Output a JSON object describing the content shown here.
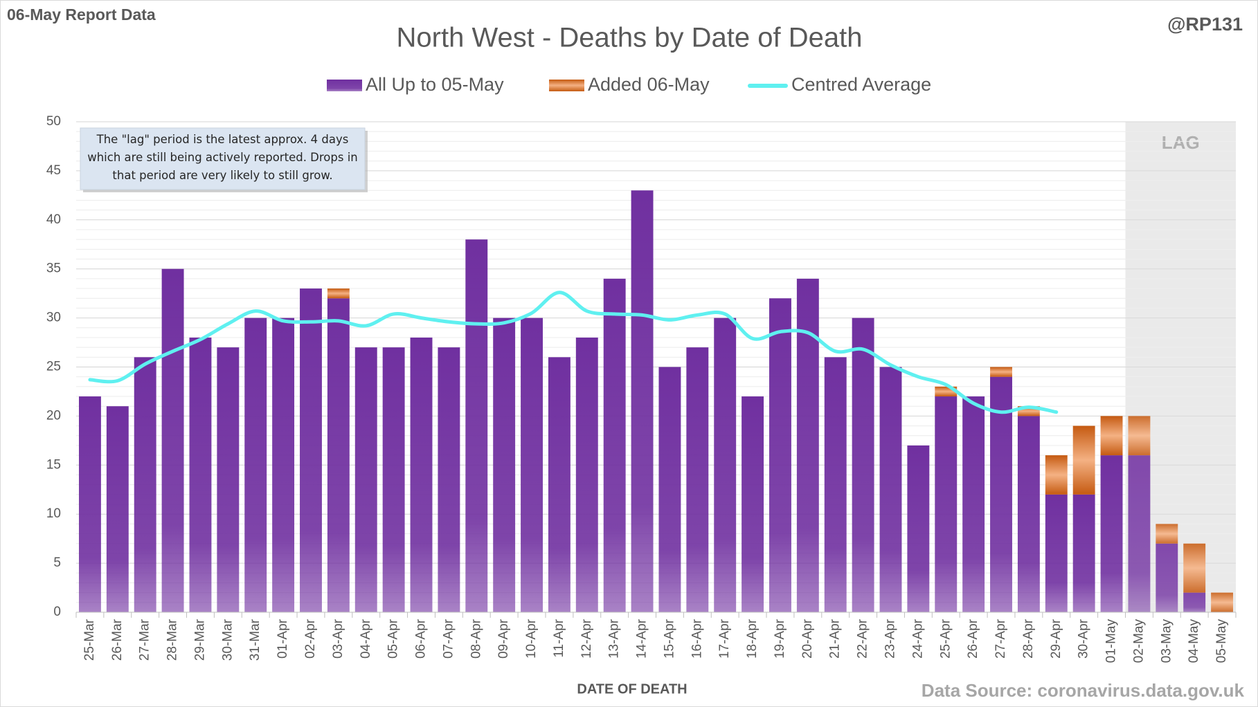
{
  "header": {
    "report": "06-May Report Data",
    "handle": "@RP131",
    "source": "Data Source: coronavirus.data.gov.uk"
  },
  "chart_data": {
    "type": "stacked_bar_line",
    "title": "North West - Deaths by Date of Death",
    "xlabel": "DATE OF DEATH",
    "annotation": "The \"lag\" period is the latest approx. 4 days which are still being actively reported.  Drops in that period are very likely to still grow.",
    "lag_label": "LAG",
    "categories": [
      "25-Mar",
      "26-Mar",
      "27-Mar",
      "28-Mar",
      "29-Mar",
      "30-Mar",
      "31-Mar",
      "01-Apr",
      "02-Apr",
      "03-Apr",
      "04-Apr",
      "05-Apr",
      "06-Apr",
      "07-Apr",
      "08-Apr",
      "09-Apr",
      "10-Apr",
      "11-Apr",
      "12-Apr",
      "13-Apr",
      "14-Apr",
      "15-Apr",
      "16-Apr",
      "17-Apr",
      "18-Apr",
      "19-Apr",
      "20-Apr",
      "21-Apr",
      "22-Apr",
      "23-Apr",
      "24-Apr",
      "25-Apr",
      "26-Apr",
      "27-Apr",
      "28-Apr",
      "29-Apr",
      "30-Apr",
      "01-May",
      "02-May",
      "03-May",
      "04-May",
      "05-May"
    ],
    "series": [
      {
        "name": "All Up to 05-May",
        "color": "#7030a0",
        "kind": "bar",
        "values": [
          22,
          21,
          26,
          35,
          28,
          27,
          30,
          30,
          33,
          32,
          27,
          27,
          28,
          27,
          38,
          30,
          30,
          26,
          28,
          34,
          43,
          25,
          27,
          30,
          22,
          32,
          34,
          26,
          30,
          25,
          17,
          22,
          22,
          24,
          20,
          12,
          12,
          16,
          16,
          7,
          2,
          0
        ]
      },
      {
        "name": "Added 06-May",
        "color": "#c55a11",
        "kind": "bar",
        "values": [
          0,
          0,
          0,
          0,
          0,
          0,
          0,
          0,
          0,
          1,
          0,
          0,
          0,
          0,
          0,
          0,
          0,
          0,
          0,
          0,
          0,
          0,
          0,
          0,
          0,
          0,
          0,
          0,
          0,
          0,
          0,
          1,
          0,
          1,
          1,
          4,
          7,
          4,
          4,
          2,
          5,
          2
        ]
      },
      {
        "name": "Centred Average",
        "color": "#5ff0f0",
        "kind": "line",
        "values": [
          23.7,
          23.6,
          25.3,
          26.6,
          27.8,
          29.4,
          30.7,
          29.7,
          29.6,
          29.7,
          29.2,
          30.4,
          30.0,
          29.6,
          29.4,
          29.5,
          30.5,
          32.6,
          30.7,
          30.4,
          30.3,
          29.8,
          30.3,
          30.4,
          27.9,
          28.6,
          28.5,
          26.6,
          26.8,
          25.2,
          24.0,
          23.2,
          21.3,
          20.4,
          20.9,
          20.4,
          null,
          null,
          null,
          null,
          null,
          null
        ]
      }
    ],
    "ylim": [
      0,
      50
    ],
    "yticks": [
      0,
      5,
      10,
      15,
      20,
      25,
      30,
      35,
      40,
      45,
      50
    ],
    "grid": true
  }
}
